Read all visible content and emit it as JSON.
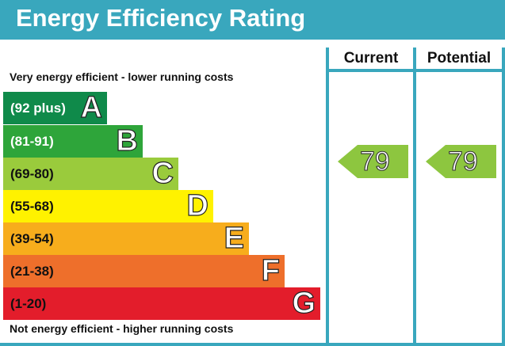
{
  "title": "Energy Efficiency Rating",
  "top_note": "Very energy efficient - lower running costs",
  "bottom_note": "Not energy efficient - higher running costs",
  "columns": {
    "current": "Current",
    "potential": "Potential"
  },
  "ratings": {
    "current": "79",
    "potential": "79",
    "arrow_color": "#8dc63f"
  },
  "bands": [
    {
      "range": "(92 plus)",
      "letter": "A",
      "color": "#0f8a4a",
      "text_color": "#ffffff"
    },
    {
      "range": "(81-91)",
      "letter": "B",
      "color": "#2ea53a",
      "text_color": "#ffffff"
    },
    {
      "range": "(69-80)",
      "letter": "C",
      "color": "#9acb3c",
      "text_color": "#111111"
    },
    {
      "range": "(55-68)",
      "letter": "D",
      "color": "#fff200",
      "text_color": "#111111"
    },
    {
      "range": "(39-54)",
      "letter": "E",
      "color": "#f7ad1c",
      "text_color": "#111111"
    },
    {
      "range": "(21-38)",
      "letter": "F",
      "color": "#ee6f2b",
      "text_color": "#111111"
    },
    {
      "range": "(1-20)",
      "letter": "G",
      "color": "#e31d2b",
      "text_color": "#111111"
    }
  ],
  "chart_data": {
    "type": "bar",
    "categories": [
      "(92 plus)",
      "(81-91)",
      "(69-80)",
      "(55-68)",
      "(39-54)",
      "(21-38)",
      "(1-20)"
    ],
    "letters": [
      "A",
      "B",
      "C",
      "D",
      "E",
      "F",
      "G"
    ],
    "current": 79,
    "potential": 79
  }
}
